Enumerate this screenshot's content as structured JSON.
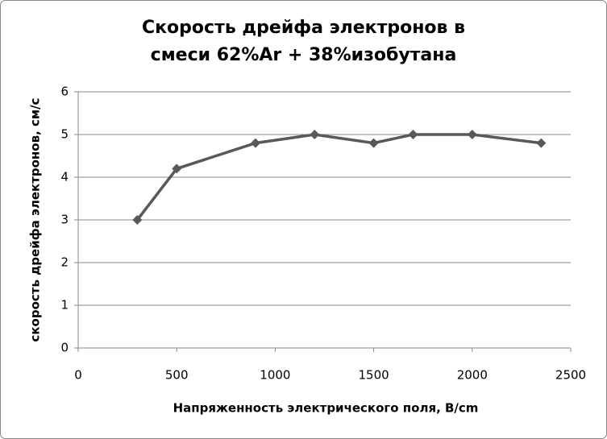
{
  "chart_data": {
    "type": "line",
    "title": "Скорость дрейфа электронов в смеси 62%Ar + 38%изобутана",
    "x_label": "Напряженность электрического поля, В/cm",
    "y_label": "скорость дрейфа электронов, см/с",
    "x": [
      300,
      500,
      900,
      1200,
      1500,
      1700,
      2000,
      2350
    ],
    "series": [
      {
        "color": "#595959",
        "values": [
          3,
          4.2,
          4.8,
          5,
          4.8,
          5,
          5,
          4.8
        ]
      }
    ],
    "xlim": [
      0,
      2500
    ],
    "xticks": [
      0,
      500,
      1000,
      1500,
      2000,
      2500
    ],
    "ylim": [
      0,
      6
    ],
    "yticks": [
      0,
      1,
      2,
      3,
      4,
      5,
      6
    ],
    "grid": true
  }
}
